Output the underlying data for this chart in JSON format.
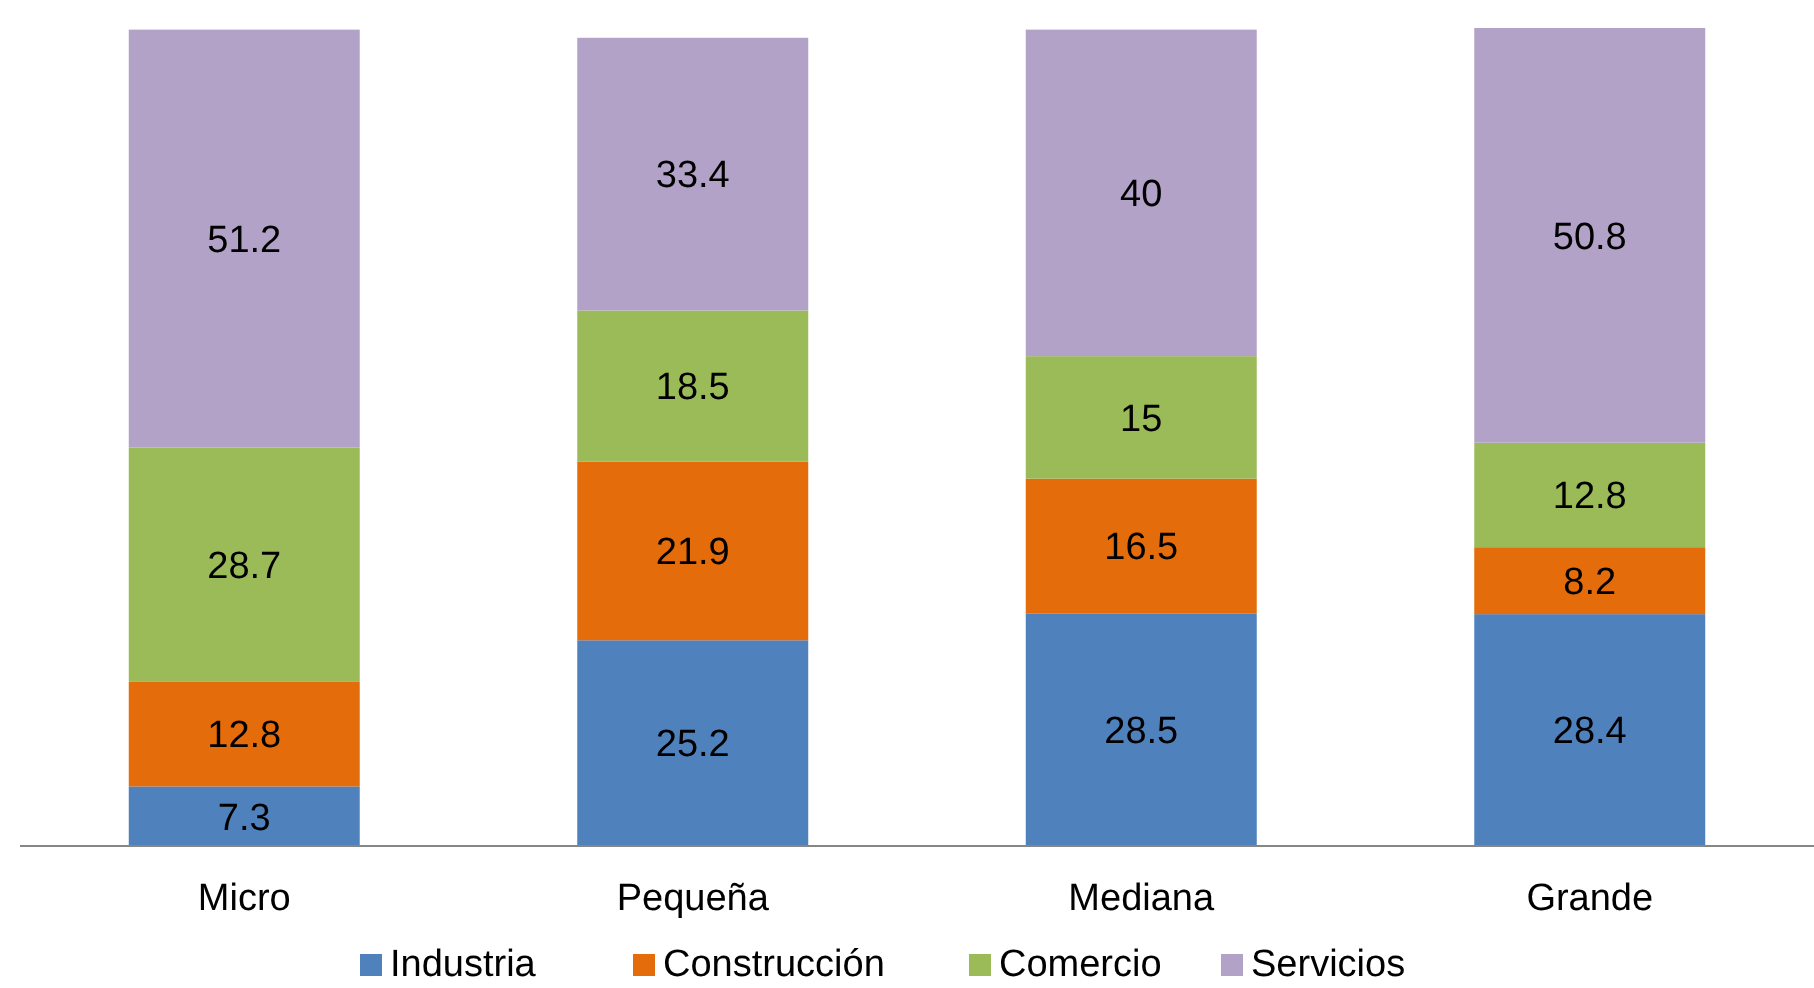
{
  "chart_data": {
    "type": "bar",
    "stacked": true,
    "data_labels": true,
    "legend": "bottom",
    "grid": false,
    "categories": [
      "Micro",
      "Pequeña",
      "Mediana",
      "Grande"
    ],
    "series": [
      {
        "name": "Industria",
        "color": "#4f81bd",
        "values": [
          7.3,
          25.2,
          28.5,
          28.4
        ]
      },
      {
        "name": "Construcción",
        "color": "#e46c0a",
        "values": [
          12.8,
          21.9,
          16.5,
          8.2
        ]
      },
      {
        "name": "Comercio",
        "color": "#9bbb59",
        "values": [
          28.7,
          18.5,
          15,
          12.8
        ]
      },
      {
        "name": "Servicios",
        "color": "#b3a2c7",
        "values": [
          51.2,
          33.4,
          40,
          50.8
        ]
      }
    ]
  }
}
